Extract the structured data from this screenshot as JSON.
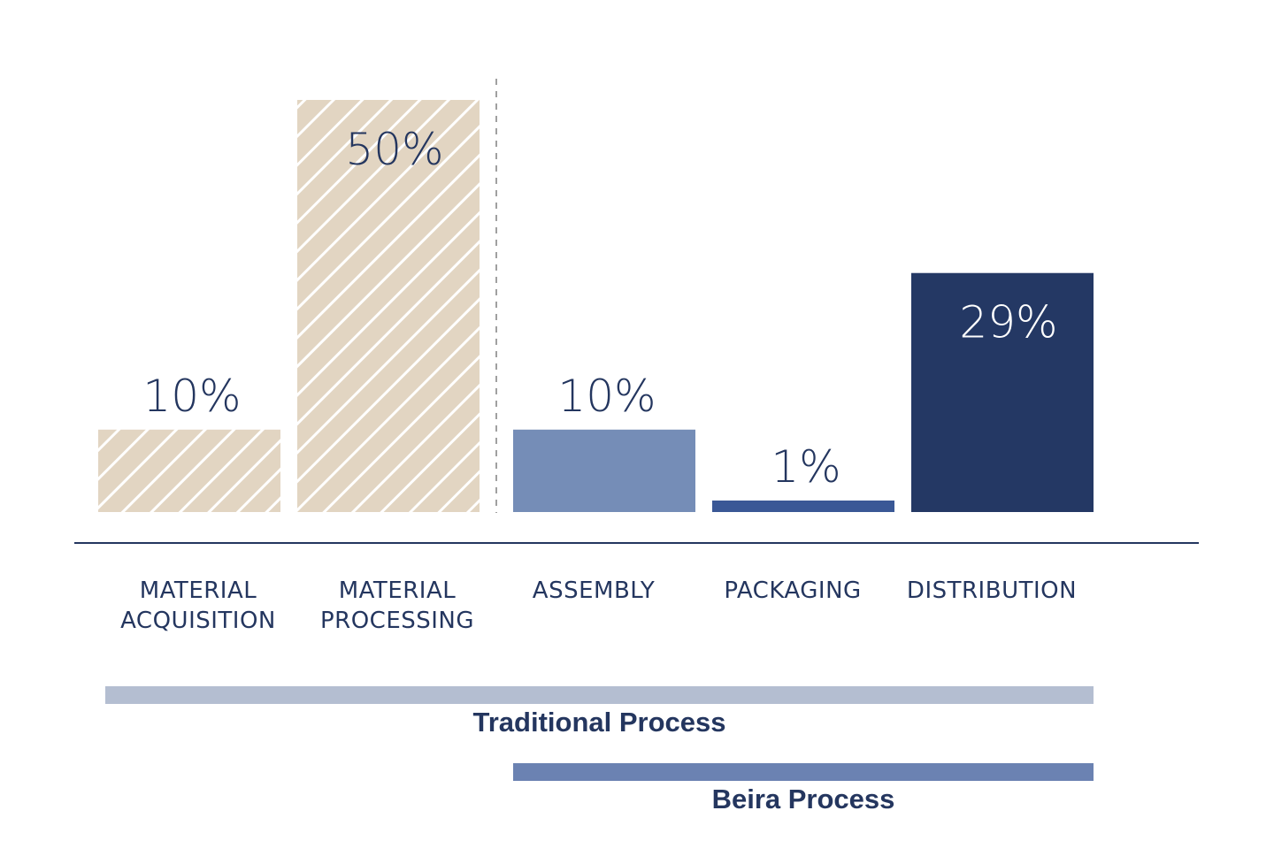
{
  "chart_data": {
    "type": "bar",
    "categories": [
      [
        "MATERIAL",
        "ACQUISITION"
      ],
      [
        "MATERIAL",
        "PROCESSING"
      ],
      [
        "ASSEMBLY"
      ],
      [
        "PACKAGING"
      ],
      [
        "DISTRIBUTION"
      ]
    ],
    "values": [
      10,
      50,
      10,
      1,
      29
    ],
    "value_labels": [
      "10%",
      "50%",
      "10%",
      "1%",
      "29%"
    ],
    "title": "",
    "xlabel": "",
    "ylabel": "",
    "ylim": [
      0,
      50
    ],
    "grid": false,
    "bar_styles": [
      {
        "fill": "#e2d5c2",
        "pattern": "hatch",
        "label_color": "#24365f",
        "label_position": "above"
      },
      {
        "fill": "#e2d5c2",
        "pattern": "hatch",
        "label_color": "#24365f",
        "label_position": "inside"
      },
      {
        "fill": "#758db7",
        "pattern": "solid",
        "label_color": "#24365f",
        "label_position": "above"
      },
      {
        "fill": "#3a5896",
        "pattern": "solid",
        "label_color": "#24365f",
        "label_position": "above"
      },
      {
        "fill": "#243864",
        "pattern": "solid",
        "label_color": "#ffffff",
        "label_position": "inside"
      }
    ],
    "divider": {
      "style": "dashed",
      "between": [
        1,
        2
      ],
      "color": "#a0a0a0"
    },
    "process_ranges": [
      {
        "label": "Traditional Process",
        "from": 0,
        "to": 4,
        "color": "#b4bed1"
      },
      {
        "label": "Beira Process",
        "from": 2,
        "to": 4,
        "color": "#6b82b2"
      }
    ],
    "colors": {
      "axis": "#24365f",
      "text": "#24365f"
    }
  }
}
